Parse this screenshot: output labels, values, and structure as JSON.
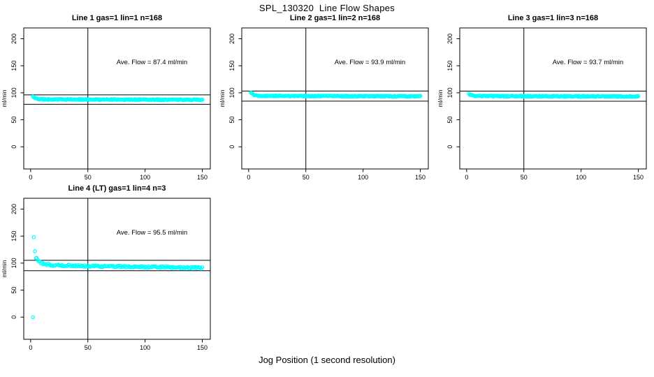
{
  "page": {
    "main_title": "SPL_130320  Line Flow Shapes",
    "x_axis_label": "Jog Position (1 second resolution)",
    "background_color": "#ffffff",
    "text_color": "#000000"
  },
  "chart_data": {
    "type": "scatter",
    "title": "SPL_130320  Line Flow Shapes",
    "xlabel": "Jog Position (1 second resolution)",
    "ylabel": "ml/min",
    "point_shape": "open-circle",
    "point_color": "#00ffff",
    "line_color": "#000000",
    "xticks": [
      0,
      50,
      100,
      150
    ],
    "yticks": [
      0,
      50,
      100,
      150,
      200
    ],
    "xlim": [
      -6,
      157
    ],
    "ylim": [
      -41,
      220
    ],
    "vline_x": 50,
    "annotation_anchor": {
      "x": 106,
      "y": 153
    },
    "grid": false,
    "panels": [
      {
        "seed": 11,
        "title": "Line 1 gas=1 lin=1 n=168",
        "gas": 1,
        "lin": 1,
        "n": 168,
        "ave_flow": 87.4,
        "annotation": "Ave. Flow =  87.4  ml/min",
        "ref_upper": 96.1,
        "ref_lower": 78.7,
        "count": 240,
        "trace": {
          "start_x": 2,
          "start_y": 93,
          "settle_y": 87.8,
          "end_y": 87.1,
          "decay": 2.5,
          "noise": 0.9
        },
        "outliers": []
      },
      {
        "seed": 22,
        "title": "Line 2 gas=1 lin=2 n=168",
        "gas": 1,
        "lin": 2,
        "n": 168,
        "ave_flow": 93.9,
        "annotation": "Ave. Flow =  93.9  ml/min",
        "ref_upper": 103.3,
        "ref_lower": 84.5,
        "count": 240,
        "trace": {
          "start_x": 2,
          "start_y": 101,
          "settle_y": 94.3,
          "end_y": 93.4,
          "decay": 2.2,
          "noise": 0.9
        },
        "outliers": []
      },
      {
        "seed": 33,
        "title": "Line 3 gas=1 lin=3 n=168",
        "gas": 1,
        "lin": 3,
        "n": 168,
        "ave_flow": 93.7,
        "annotation": "Ave. Flow =  93.7  ml/min",
        "ref_upper": 103.1,
        "ref_lower": 84.3,
        "count": 240,
        "trace": {
          "start_x": 2,
          "start_y": 98,
          "settle_y": 93.9,
          "end_y": 93.1,
          "decay": 2.2,
          "noise": 0.9
        },
        "outliers": []
      },
      {
        "seed": 44,
        "title": "Line 4 (LT) gas=1 lin=4 n=3",
        "gas": 1,
        "lin": 4,
        "n": 3,
        "ave_flow": 95.5,
        "annotation": "Ave. Flow =  95.5  ml/min",
        "ref_upper": 105.1,
        "ref_lower": 86.0,
        "count": 165,
        "trace": {
          "start_x": 4.5,
          "start_y": 111,
          "settle_y": 96.5,
          "end_y": 91,
          "decay": 4,
          "noise": 1.7
        },
        "outliers": [
          [
            2,
            0
          ],
          [
            2.8,
            148
          ],
          [
            3.8,
            122
          ]
        ]
      }
    ]
  }
}
